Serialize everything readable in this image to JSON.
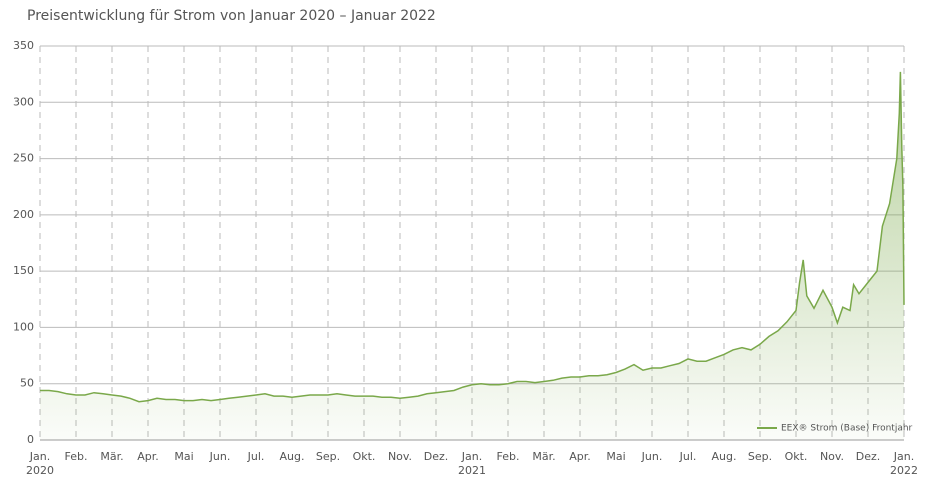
{
  "chart_data": {
    "type": "area",
    "title": "Preisentwicklung für Strom von Januar 2020 – Januar 2022",
    "xlim": [
      0,
      24
    ],
    "ylim": [
      0,
      350
    ],
    "yticks": [
      0,
      50,
      100,
      150,
      200,
      250,
      300,
      350
    ],
    "xticks": [
      {
        "value": 0,
        "label": "Jan."
      },
      {
        "value": 1,
        "label": "Feb."
      },
      {
        "value": 2,
        "label": "Mär."
      },
      {
        "value": 3,
        "label": "Apr."
      },
      {
        "value": 4,
        "label": "Mai"
      },
      {
        "value": 5,
        "label": "Jun."
      },
      {
        "value": 6,
        "label": "Jul."
      },
      {
        "value": 7,
        "label": "Aug."
      },
      {
        "value": 8,
        "label": "Sep."
      },
      {
        "value": 9,
        "label": "Okt."
      },
      {
        "value": 10,
        "label": "Nov."
      },
      {
        "value": 11,
        "label": "Dez."
      },
      {
        "value": 12,
        "label": "Jan."
      },
      {
        "value": 13,
        "label": "Feb."
      },
      {
        "value": 14,
        "label": "Mär."
      },
      {
        "value": 15,
        "label": "Apr."
      },
      {
        "value": 16,
        "label": "Mai"
      },
      {
        "value": 17,
        "label": "Jun."
      },
      {
        "value": 18,
        "label": "Jul."
      },
      {
        "value": 19,
        "label": "Aug."
      },
      {
        "value": 20,
        "label": "Sep."
      },
      {
        "value": 21,
        "label": "Okt."
      },
      {
        "value": 22,
        "label": "Nov."
      },
      {
        "value": 23,
        "label": "Dez."
      },
      {
        "value": 24,
        "label": "Jan."
      }
    ],
    "x_year_labels": [
      {
        "value": 0,
        "label": "2020"
      },
      {
        "value": 12,
        "label": "2021"
      },
      {
        "value": 24,
        "label": "2022"
      }
    ],
    "grid": true,
    "legend": "lower right",
    "series": [
      {
        "name": "EEX® Strom (Base) Frontjahr",
        "color": "#7aa84a",
        "x": [
          0,
          0.25,
          0.5,
          0.75,
          1,
          1.25,
          1.5,
          1.75,
          2,
          2.25,
          2.5,
          2.75,
          3,
          3.25,
          3.5,
          3.75,
          4,
          4.25,
          4.5,
          4.75,
          5,
          5.25,
          5.5,
          5.75,
          6,
          6.25,
          6.5,
          6.75,
          7,
          7.25,
          7.5,
          7.75,
          8,
          8.25,
          8.5,
          8.75,
          9,
          9.25,
          9.5,
          9.75,
          10,
          10.25,
          10.5,
          10.75,
          11,
          11.25,
          11.5,
          11.75,
          12,
          12.25,
          12.5,
          12.75,
          13,
          13.25,
          13.5,
          13.75,
          14,
          14.25,
          14.5,
          14.75,
          15,
          15.25,
          15.5,
          15.75,
          16,
          16.25,
          16.5,
          16.75,
          17,
          17.25,
          17.5,
          17.75,
          18,
          18.25,
          18.5,
          18.75,
          19,
          19.25,
          19.5,
          19.75,
          20,
          20.25,
          20.5,
          20.75,
          21,
          21.1,
          21.2,
          21.3,
          21.5,
          21.75,
          22,
          22.15,
          22.3,
          22.5,
          22.6,
          22.75,
          23,
          23.25,
          23.4,
          23.6,
          23.8,
          23.87,
          23.9,
          23.94,
          23.97,
          24
        ],
        "values": [
          44,
          44,
          43,
          41,
          40,
          40,
          42,
          41,
          40,
          39,
          37,
          34,
          35,
          37,
          36,
          36,
          35,
          35,
          36,
          35,
          36,
          37,
          38,
          39,
          40,
          41,
          39,
          39,
          38,
          39,
          40,
          40,
          40,
          41,
          40,
          39,
          39,
          39,
          38,
          38,
          37,
          38,
          39,
          41,
          42,
          43,
          44,
          47,
          49,
          50,
          49,
          49,
          50,
          52,
          52,
          51,
          52,
          53,
          55,
          56,
          56,
          57,
          57,
          58,
          60,
          63,
          67,
          62,
          64,
          64,
          66,
          68,
          72,
          70,
          70,
          73,
          76,
          80,
          82,
          80,
          85,
          92,
          97,
          105,
          115,
          140,
          160,
          128,
          117,
          133,
          118,
          104,
          118,
          115,
          138,
          130,
          140,
          150,
          190,
          210,
          250,
          290,
          327,
          260,
          225,
          120
        ]
      }
    ]
  }
}
